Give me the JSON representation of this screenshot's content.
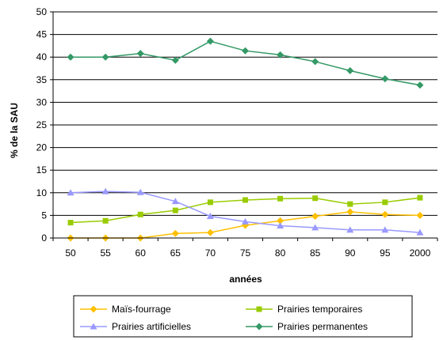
{
  "chart_data": {
    "type": "line",
    "xlabel": "années",
    "ylabel": "% de la SAU",
    "categories": [
      "50",
      "55",
      "60",
      "65",
      "70",
      "75",
      "80",
      "85",
      "90",
      "95",
      "2000"
    ],
    "ylim": [
      0,
      50
    ],
    "yticks": [
      "0",
      "5",
      "10",
      "15",
      "20",
      "25",
      "30",
      "35",
      "40",
      "45",
      "50"
    ],
    "grid": "horizontal",
    "legend_position": "bottom",
    "series": [
      {
        "name": "Maïs-fourrage",
        "color": "#ffc000",
        "marker": "diamond",
        "values": [
          0,
          0,
          0,
          1,
          1.2,
          2.8,
          3.8,
          4.8,
          5.8,
          5.2,
          5
        ]
      },
      {
        "name": "Prairies temporaires",
        "color": "#99cc00",
        "marker": "square",
        "values": [
          3.4,
          3.8,
          5.2,
          6.1,
          7.9,
          8.4,
          8.7,
          8.8,
          7.5,
          7.9,
          8.9
        ]
      },
      {
        "name": "Prairies artificielles",
        "color": "#9999ff",
        "marker": "triangle",
        "values": [
          10,
          10.3,
          10.1,
          8.1,
          4.8,
          3.6,
          2.7,
          2.3,
          1.8,
          1.8,
          1.2
        ]
      },
      {
        "name": "Prairies permanentes",
        "color": "#339966",
        "marker": "diamond",
        "values": [
          40,
          40,
          40.8,
          39.3,
          43.5,
          41.4,
          40.5,
          39,
          37,
          35.2,
          33.8
        ]
      }
    ]
  }
}
